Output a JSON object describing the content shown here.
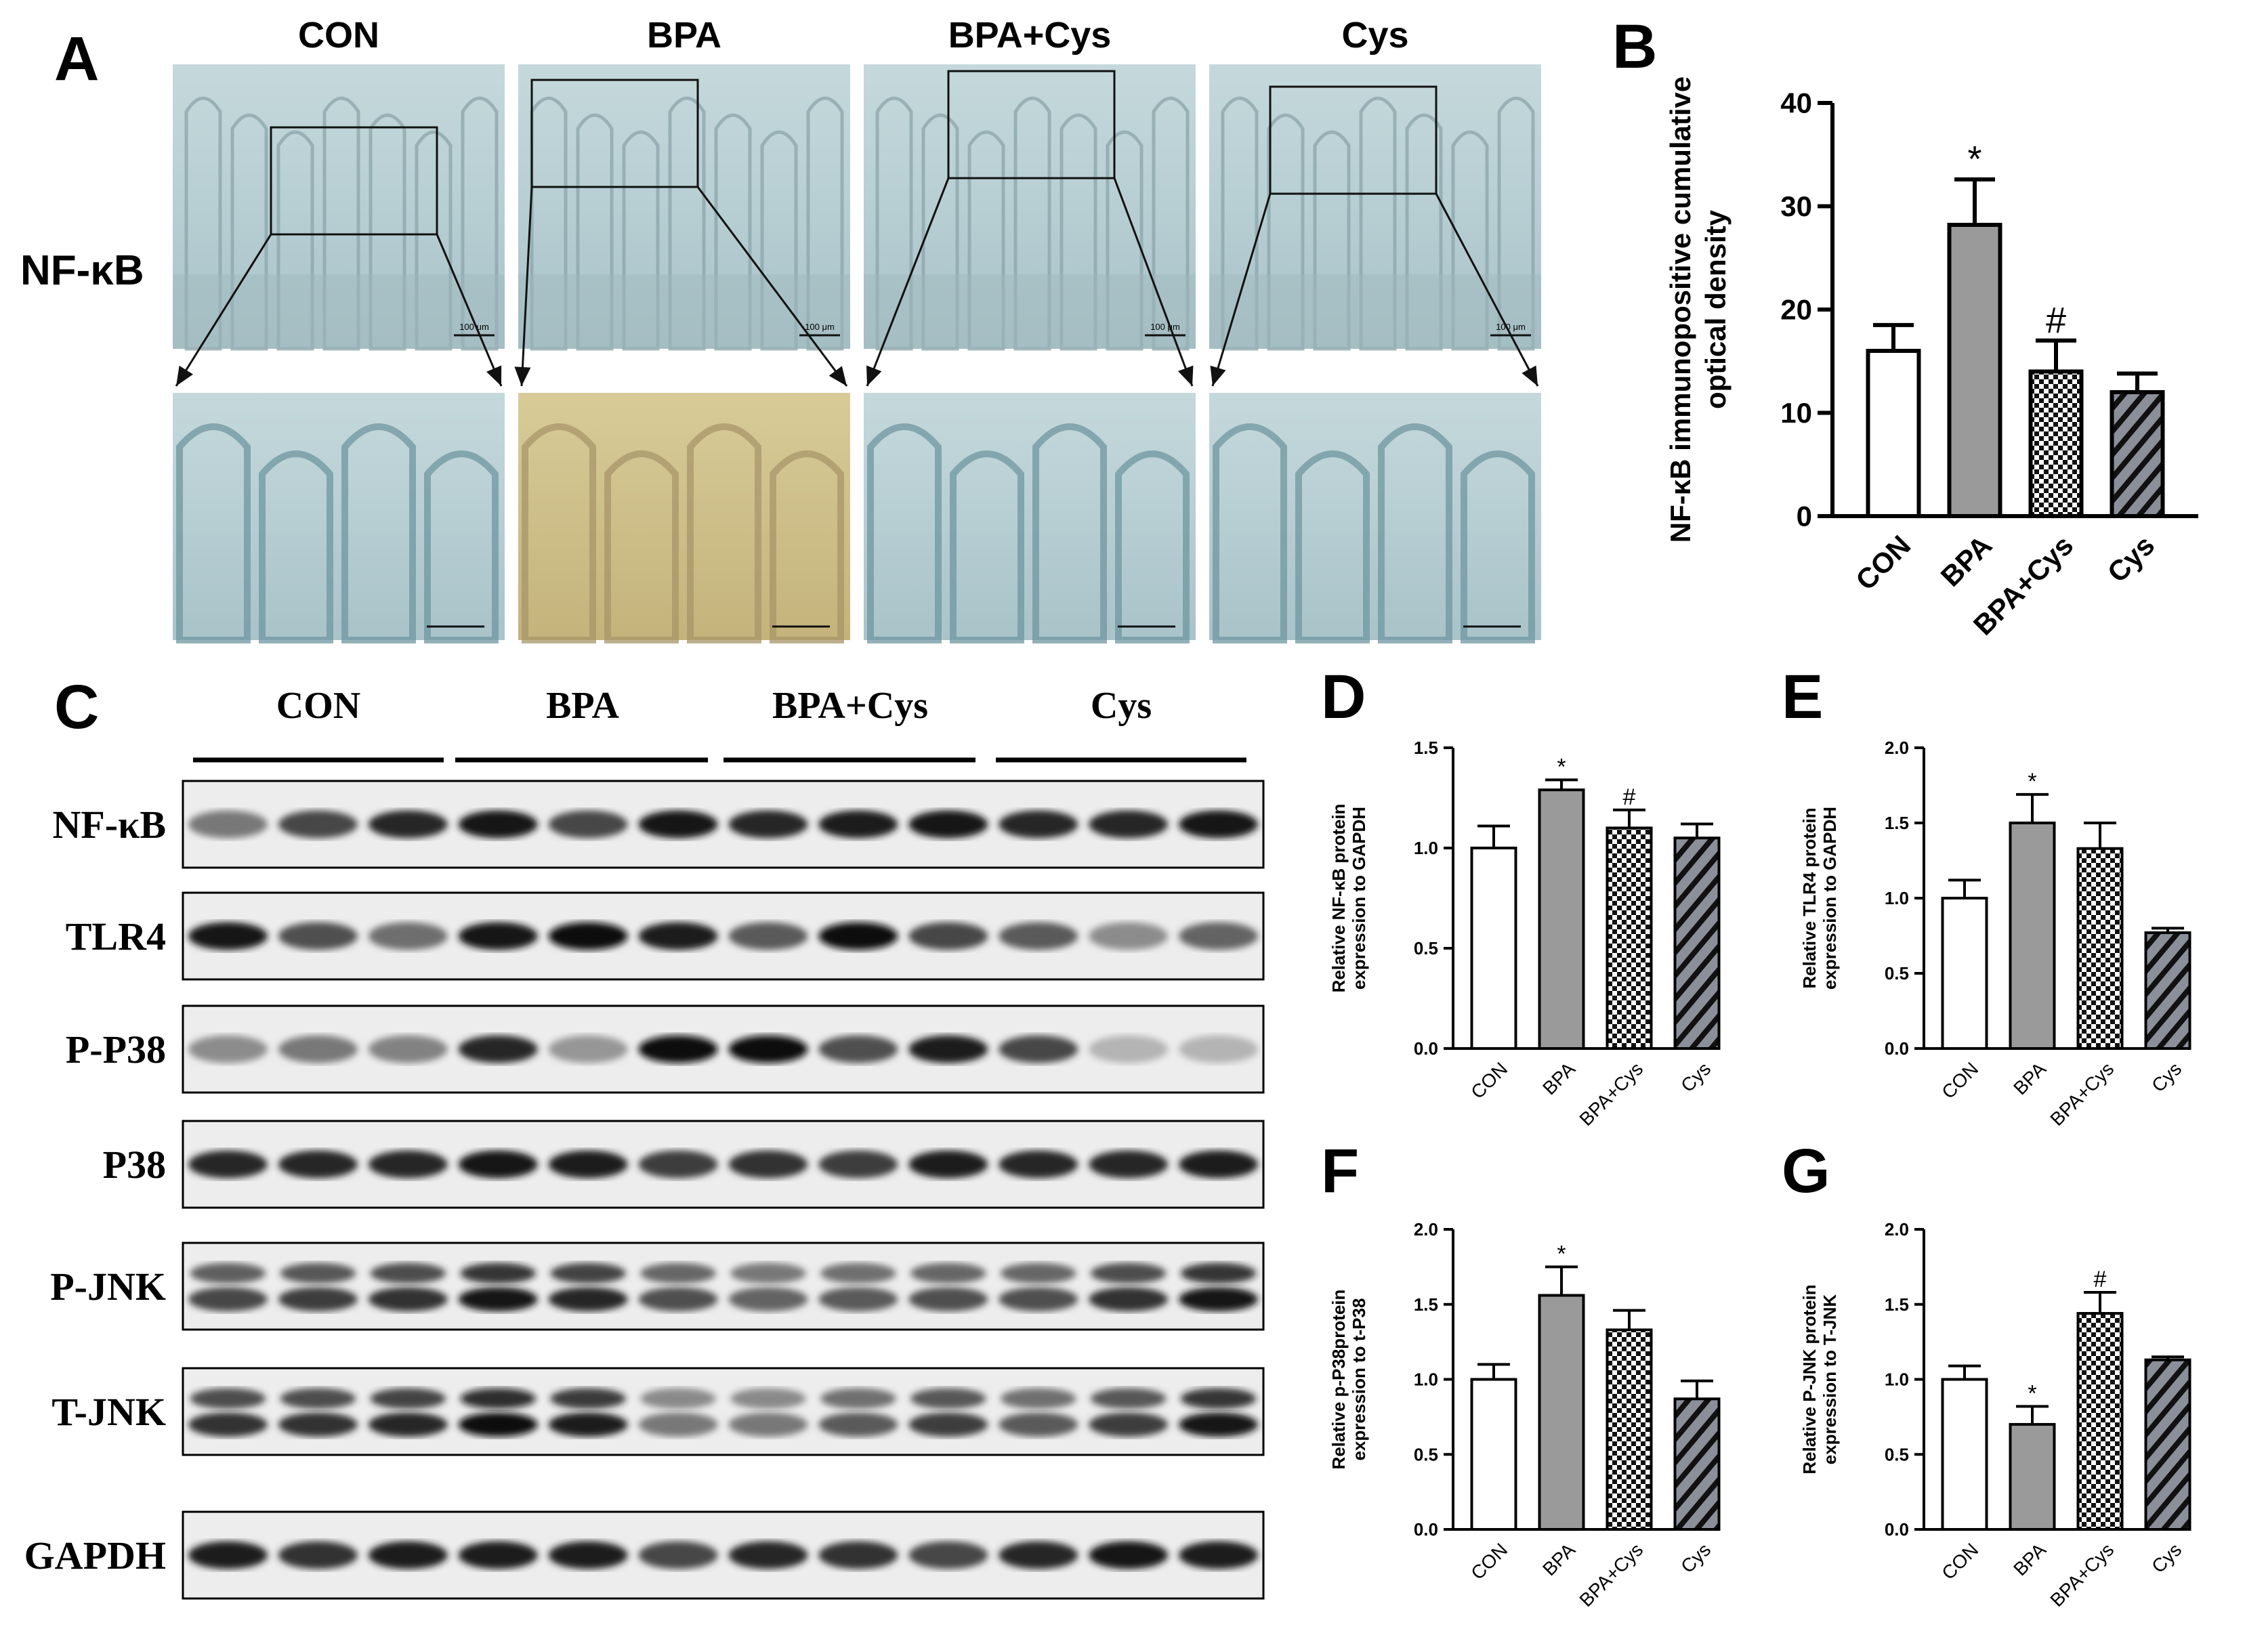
{
  "panel_letters": [
    "A",
    "B",
    "C",
    "D",
    "E",
    "F",
    "G"
  ],
  "groups": [
    "CON",
    "BPA",
    "BPA+Cys",
    "Cys"
  ],
  "panel_a": {
    "row_label": "NF-κB",
    "scale_label": "100 μm"
  },
  "panel_c": {
    "group_labels": [
      "CON",
      "BPA",
      "BPA+Cys",
      "Cys"
    ],
    "blots": [
      {
        "label": "NF-κB",
        "intensities": [
          0.45,
          0.7,
          0.85,
          0.95,
          0.7,
          0.95,
          0.85,
          0.9,
          0.95,
          0.85,
          0.85,
          0.95
        ]
      },
      {
        "label": "TLR4",
        "intensities": [
          0.95,
          0.65,
          0.5,
          0.95,
          1.0,
          0.9,
          0.6,
          1.0,
          0.7,
          0.6,
          0.35,
          0.55
        ]
      },
      {
        "label": "P-P38",
        "intensities": [
          0.35,
          0.45,
          0.4,
          0.85,
          0.3,
          1.0,
          1.0,
          0.65,
          0.9,
          0.7,
          0.15,
          0.15
        ]
      },
      {
        "label": "P38",
        "intensities": [
          0.85,
          0.85,
          0.85,
          0.95,
          0.9,
          0.75,
          0.8,
          0.75,
          0.9,
          0.85,
          0.85,
          0.9
        ]
      },
      {
        "label": "P-JNK",
        "intensities": [
          0.7,
          0.75,
          0.8,
          0.95,
          0.85,
          0.65,
          0.55,
          0.6,
          0.65,
          0.65,
          0.8,
          0.95
        ]
      },
      {
        "label": "T-JNK",
        "intensities": [
          0.8,
          0.8,
          0.85,
          1.0,
          0.9,
          0.45,
          0.45,
          0.6,
          0.75,
          0.6,
          0.75,
          0.95
        ]
      },
      {
        "label": "GAPDH",
        "intensities": [
          0.9,
          0.8,
          0.9,
          0.9,
          0.9,
          0.7,
          0.85,
          0.8,
          0.7,
          0.85,
          0.95,
          0.9
        ]
      }
    ]
  },
  "chart_data": [
    {
      "panel": "B",
      "type": "bar",
      "categories": [
        "CON",
        "BPA",
        "BPA+Cys",
        "Cys"
      ],
      "values": [
        16.0,
        28.2,
        14.0,
        12.0
      ],
      "errors": [
        2.5,
        4.4,
        3.0,
        1.8
      ],
      "marks": [
        "",
        "*",
        "#",
        ""
      ],
      "ylabel_lines": [
        "NF-κB immunopositive cumulative",
        "optical density"
      ],
      "ylim": [
        0,
        40
      ],
      "yticks": [
        "0",
        "10",
        "20",
        "30",
        "40"
      ],
      "ytick_values": [
        0,
        10,
        20,
        30,
        40
      ]
    },
    {
      "panel": "D",
      "type": "bar",
      "categories": [
        "CON",
        "BPA",
        "BPA+Cys",
        "Cys"
      ],
      "values": [
        1.0,
        1.29,
        1.1,
        1.05
      ],
      "errors": [
        0.11,
        0.05,
        0.09,
        0.07
      ],
      "marks": [
        "",
        "*",
        "#",
        ""
      ],
      "ylabel_lines": [
        "Relative NF-κB protein",
        "expression to GAPDH"
      ],
      "ylim": [
        0,
        1.5
      ],
      "yticks": [
        "0.0",
        "0.5",
        "1.0",
        "1.5"
      ],
      "ytick_values": [
        0,
        0.5,
        1.0,
        1.5
      ]
    },
    {
      "panel": "E",
      "type": "bar",
      "categories": [
        "CON",
        "BPA",
        "BPA+Cys",
        "Cys"
      ],
      "values": [
        1.0,
        1.5,
        1.33,
        0.77
      ],
      "errors": [
        0.12,
        0.19,
        0.17,
        0.03
      ],
      "marks": [
        "",
        "*",
        "",
        ""
      ],
      "ylabel_lines": [
        "Relative TLR4 protein",
        "expression to GAPDH"
      ],
      "ylim": [
        0,
        2.0
      ],
      "yticks": [
        "0.0",
        "0.5",
        "1.0",
        "1.5",
        "2.0"
      ],
      "ytick_values": [
        0,
        0.5,
        1.0,
        1.5,
        2.0
      ]
    },
    {
      "panel": "F",
      "type": "bar",
      "categories": [
        "CON",
        "BPA",
        "BPA+Cys",
        "Cys"
      ],
      "values": [
        1.0,
        1.56,
        1.33,
        0.87
      ],
      "errors": [
        0.1,
        0.19,
        0.13,
        0.12
      ],
      "marks": [
        "",
        "*",
        "",
        ""
      ],
      "ylabel_lines": [
        "Relative p-P38protein",
        "expression to t-P38"
      ],
      "ylim": [
        0,
        2.0
      ],
      "yticks": [
        "0.0",
        "0.5",
        "1.0",
        "1.5",
        "2.0"
      ],
      "ytick_values": [
        0,
        0.5,
        1.0,
        1.5,
        2.0
      ]
    },
    {
      "panel": "G",
      "type": "bar",
      "categories": [
        "CON",
        "BPA",
        "BPA+Cys",
        "Cys"
      ],
      "values": [
        1.0,
        0.7,
        1.44,
        1.13
      ],
      "errors": [
        0.09,
        0.12,
        0.14,
        0.02
      ],
      "marks": [
        "",
        "*",
        "#",
        ""
      ],
      "ylabel_lines": [
        "Relative P-JNK protein",
        "expression to T-JNK"
      ],
      "ylim": [
        0,
        2.0
      ],
      "yticks": [
        "0.0",
        "0.5",
        "1.0",
        "1.5",
        "2.0"
      ],
      "ytick_values": [
        0,
        0.5,
        1.0,
        1.5,
        2.0
      ]
    }
  ],
  "bar_styles": [
    "white",
    "gray",
    "checker",
    "diagonal"
  ],
  "colors": {
    "bar_gray": "#9a9a9a",
    "stripe_bg": "#8a8f99",
    "tissue_blue": "#bcd3d6",
    "tissue_brown": "#cfc08e"
  }
}
